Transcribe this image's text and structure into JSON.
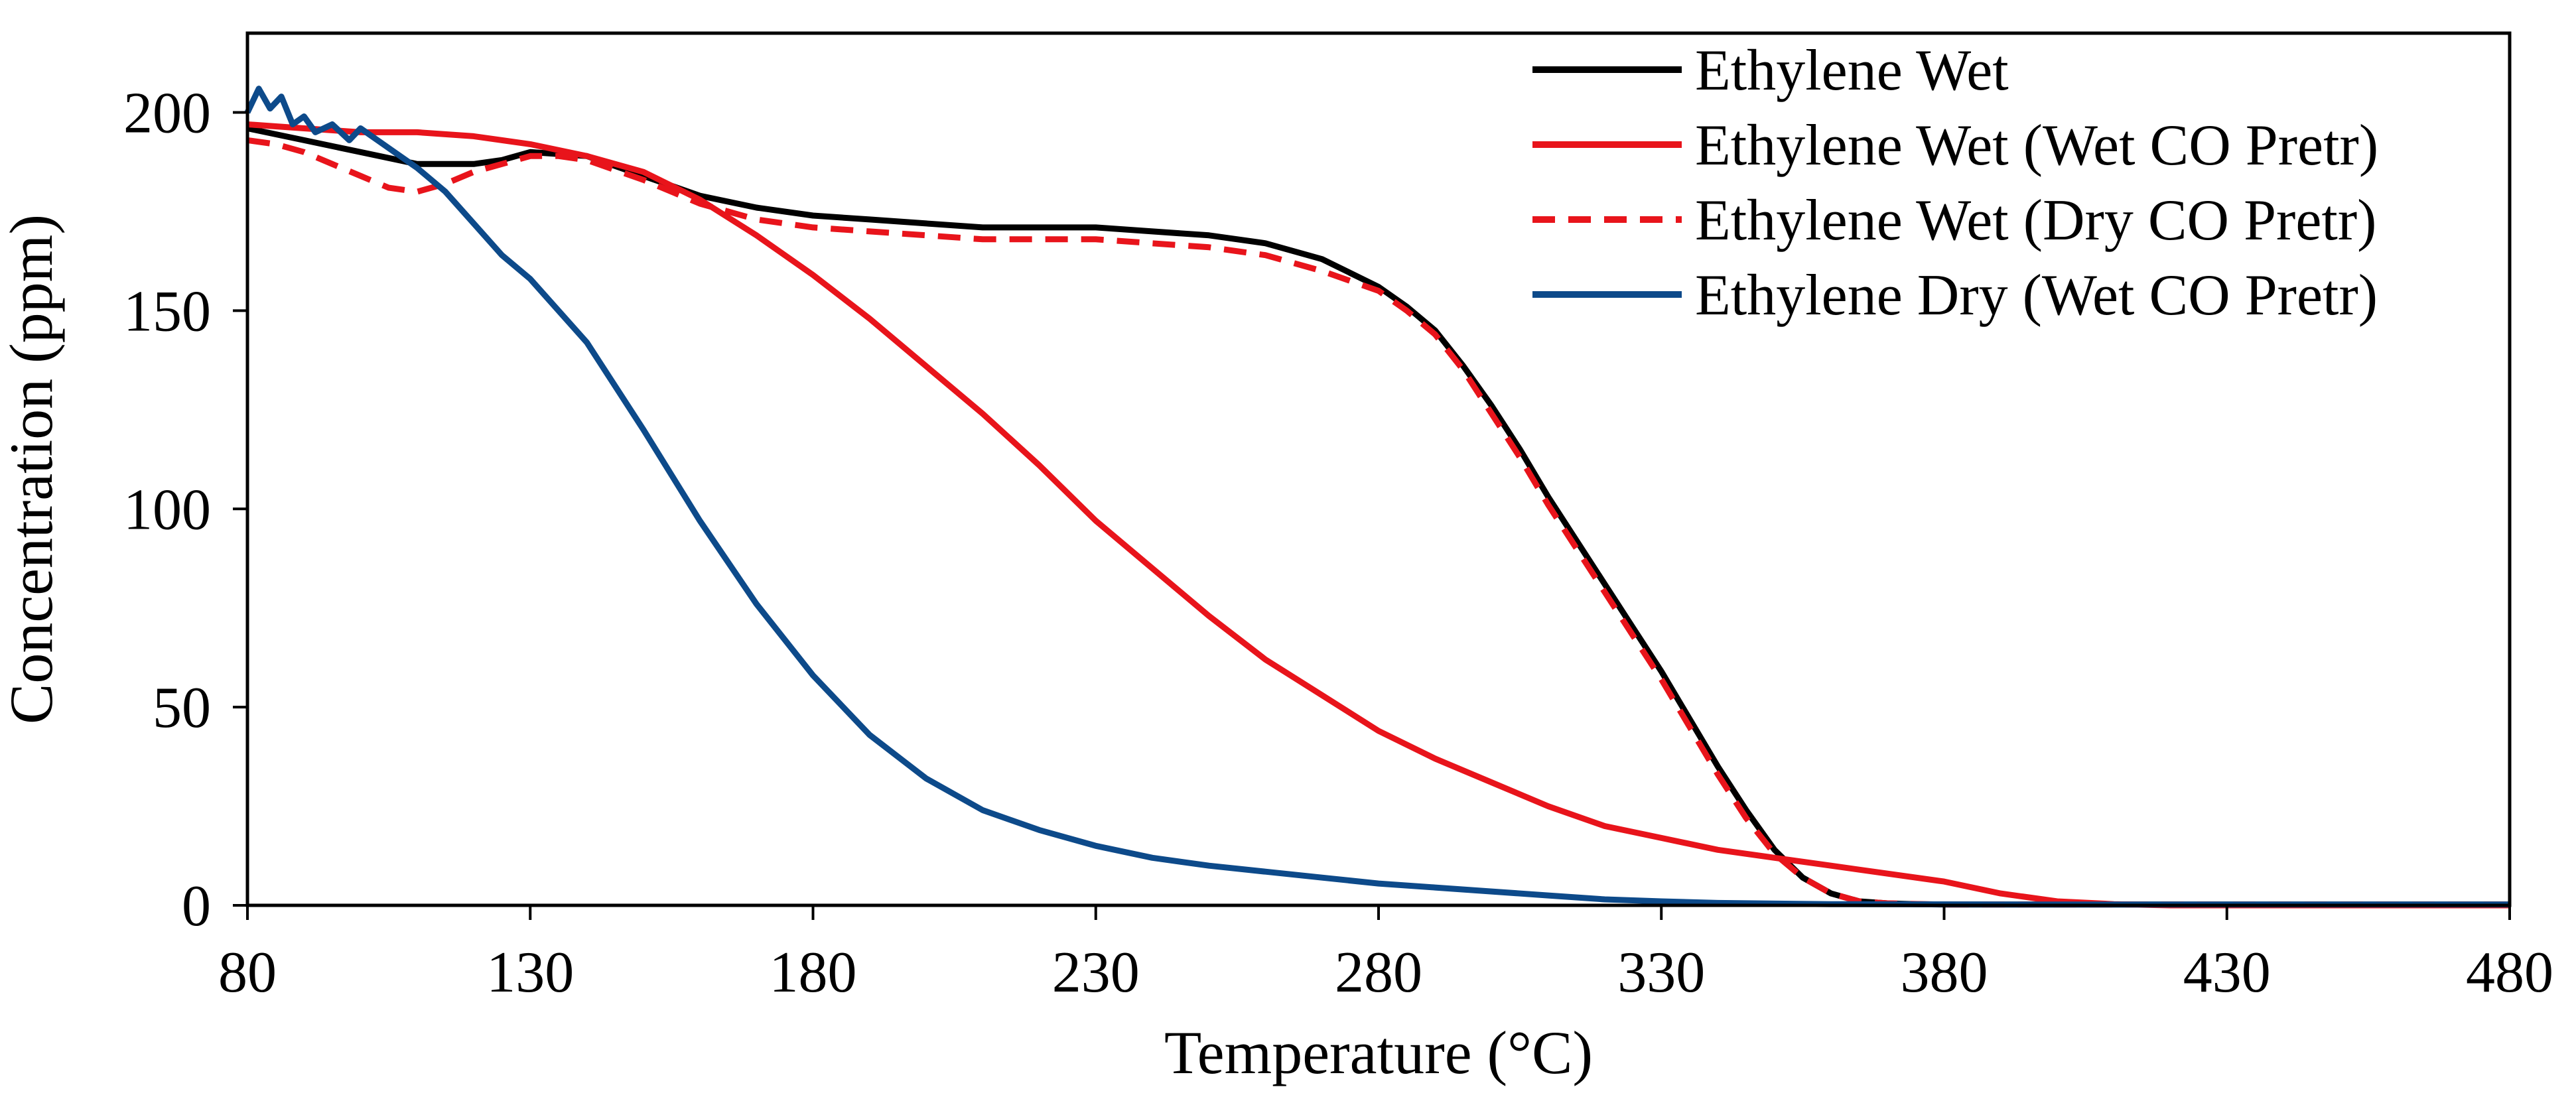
{
  "chart_data": {
    "type": "line",
    "title": "",
    "xlabel": "Temperature (°C)",
    "ylabel": "Concentration (ppm)",
    "xlim": [
      80,
      480
    ],
    "ylim": [
      0,
      220
    ],
    "x_ticks": [
      80,
      130,
      180,
      230,
      280,
      330,
      380,
      430,
      480
    ],
    "y_ticks": [
      0,
      50,
      100,
      150,
      200
    ],
    "grid": false,
    "legend_position": "top-right",
    "series": [
      {
        "name": "Ethylene Wet",
        "color": "#000000",
        "dash": "solid",
        "x": [
          80,
          90,
          100,
          110,
          120,
          125,
          130,
          140,
          150,
          160,
          170,
          180,
          190,
          200,
          210,
          220,
          230,
          240,
          250,
          260,
          270,
          280,
          285,
          290,
          295,
          300,
          305,
          310,
          315,
          320,
          325,
          330,
          335,
          340,
          345,
          350,
          355,
          360,
          365,
          370,
          375,
          380,
          400,
          420,
          440,
          460,
          480
        ],
        "y": [
          196,
          193,
          190,
          187,
          187,
          188,
          190,
          189,
          184,
          179,
          176,
          174,
          173,
          172,
          171,
          171,
          171,
          170,
          169,
          167,
          163,
          156,
          151,
          145,
          136,
          126,
          115,
          103,
          92,
          81,
          70,
          59,
          47,
          35,
          24,
          14,
          7,
          3,
          1,
          0.5,
          0.3,
          0.2,
          0.2,
          0.2,
          0.2,
          0.2,
          0.2
        ]
      },
      {
        "name": "Ethylene Wet (Wet CO Pretr)",
        "color": "#e8141b",
        "dash": "solid",
        "x": [
          80,
          90,
          100,
          110,
          120,
          130,
          140,
          150,
          160,
          170,
          180,
          190,
          200,
          210,
          220,
          230,
          240,
          250,
          260,
          270,
          280,
          290,
          300,
          310,
          320,
          330,
          340,
          350,
          360,
          370,
          380,
          390,
          400,
          410,
          420,
          440,
          460,
          480
        ],
        "y": [
          197,
          196,
          195,
          195,
          194,
          192,
          189,
          185,
          178,
          169,
          159,
          148,
          136,
          124,
          111,
          97,
          85,
          73,
          62,
          53,
          44,
          37,
          31,
          25,
          20,
          17,
          14,
          12,
          10,
          8,
          6,
          3,
          1,
          0.3,
          0,
          0,
          0,
          0
        ]
      },
      {
        "name": "Ethylene Wet (Dry CO Pretr)",
        "color": "#e8141b",
        "dash": "dashed",
        "x": [
          80,
          85,
          90,
          95,
          100,
          105,
          110,
          115,
          120,
          125,
          130,
          135,
          140,
          150,
          160,
          170,
          180,
          190,
          200,
          210,
          220,
          230,
          240,
          250,
          260,
          270,
          280,
          285,
          290,
          295,
          300,
          305,
          310,
          315,
          320,
          325,
          330,
          335,
          340,
          345,
          350,
          355,
          360,
          365,
          370,
          380,
          400,
          420,
          440,
          460,
          480
        ],
        "y": [
          193,
          192,
          190,
          187,
          184,
          181,
          180,
          182,
          185,
          187,
          189,
          189,
          188,
          183,
          177,
          173,
          171,
          170,
          169,
          168,
          168,
          168,
          167,
          166,
          164,
          160,
          155,
          150,
          144,
          135,
          124,
          113,
          101,
          90,
          79,
          68,
          57,
          45,
          33,
          22,
          13,
          7,
          3,
          1,
          0.5,
          0.2,
          0.2,
          0.2,
          0.2,
          0.2,
          0.2
        ]
      },
      {
        "name": "Ethylene Dry (Wet CO Pretr)",
        "color": "#0d4a8a",
        "dash": "solid",
        "x": [
          80,
          82,
          84,
          86,
          88,
          90,
          92,
          95,
          98,
          100,
          103,
          106,
          110,
          115,
          120,
          125,
          130,
          140,
          150,
          160,
          170,
          180,
          190,
          200,
          210,
          220,
          230,
          240,
          250,
          260,
          270,
          280,
          290,
          300,
          310,
          320,
          330,
          340,
          360,
          400,
          440,
          480
        ],
        "y": [
          200,
          206,
          201,
          204,
          197,
          199,
          195,
          197,
          193,
          196,
          193,
          190,
          186,
          180,
          172,
          164,
          158,
          142,
          120,
          97,
          76,
          58,
          43,
          32,
          24,
          19,
          15,
          12,
          10,
          8.5,
          7,
          5.5,
          4.5,
          3.5,
          2.5,
          1.5,
          1,
          0.6,
          0.3,
          0.2,
          0.2,
          0.2
        ]
      }
    ]
  }
}
